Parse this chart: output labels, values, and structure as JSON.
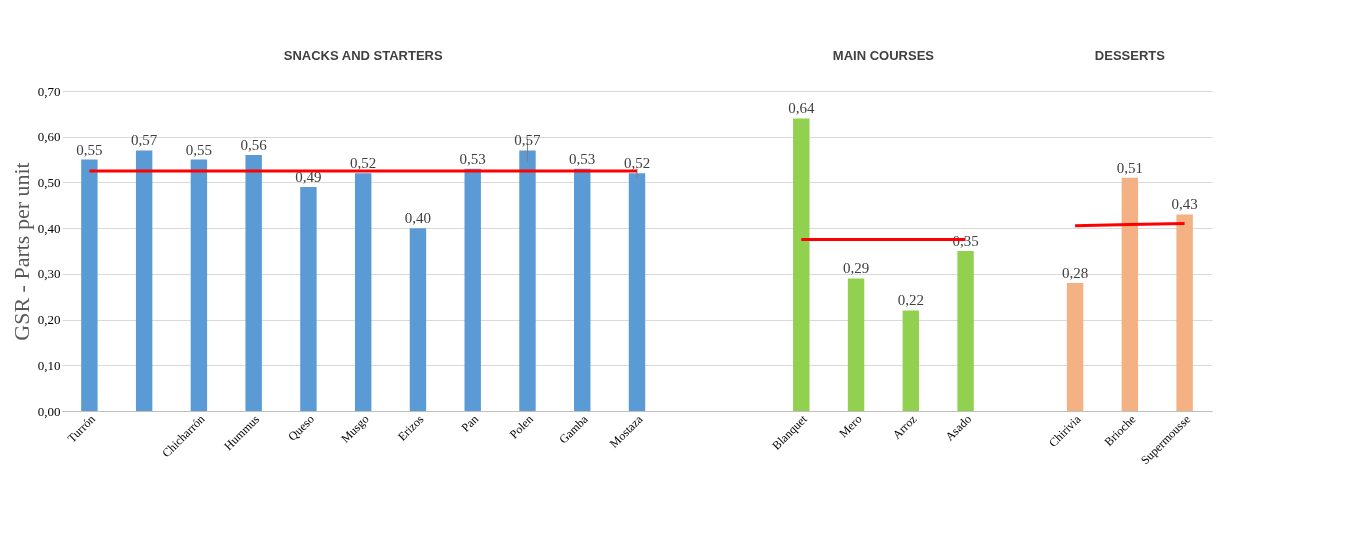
{
  "chart_data": {
    "type": "bar",
    "ylabel": "GSR - Parts per unit",
    "categories": [
      "Turrón",
      null,
      "Chicharrón",
      "Hummus",
      "Queso",
      "Musgo",
      "Erizos",
      "Pan",
      "Polen",
      "Gamba",
      "Mostaza",
      null,
      null,
      "Blanquet",
      "Mero",
      "Arroz",
      "Asado",
      null,
      "Chirivia",
      "Brioche",
      "Supermousse"
    ],
    "series": [
      {
        "values": [
          0.55,
          0.57,
          0.55,
          0.56,
          0.49,
          0.52,
          0.4,
          0.53,
          0.57,
          0.53,
          0.52,
          null,
          null,
          0.64,
          0.29,
          0.22,
          0.35,
          null,
          0.28,
          0.51,
          0.43
        ],
        "colors": [
          "#5b9bd5",
          "#5b9bd5",
          "#5b9bd5",
          "#5b9bd5",
          "#5b9bd5",
          "#5b9bd5",
          "#5b9bd5",
          "#5b9bd5",
          "#5b9bd5",
          "#5b9bd5",
          "#5b9bd5",
          null,
          null,
          "#92d050",
          "#92d050",
          "#92d050",
          "#92d050",
          null,
          "#f4b183",
          "#f4b183",
          "#f4b183"
        ],
        "value_labels": [
          "0,55",
          "0,57",
          "0,55",
          "0,56",
          "0,49",
          "0,52",
          "0,40",
          "0,53",
          "0,57",
          "0,53",
          "0,52",
          null,
          null,
          "0,64",
          "0,29",
          "0,22",
          "0,35",
          null,
          "0,28",
          "0,51",
          "0,43"
        ],
        "errors": [
          null,
          null,
          null,
          null,
          null,
          null,
          null,
          null,
          0.025,
          null,
          0.01,
          null,
          null,
          null,
          null,
          null,
          null,
          null,
          null,
          null,
          null
        ]
      },
      {
        "type": "line",
        "color": "#ff0000",
        "values": [
          0.525,
          0.525,
          0.525,
          0.525,
          0.525,
          0.525,
          0.525,
          0.525,
          0.525,
          0.525,
          0.525,
          null,
          null,
          null,
          null,
          null,
          null,
          null,
          null,
          null,
          null
        ]
      },
      {
        "type": "line",
        "color": "#ff0000",
        "values": [
          null,
          null,
          null,
          null,
          null,
          null,
          null,
          null,
          null,
          null,
          null,
          null,
          null,
          0.375,
          0.375,
          0.375,
          0.375,
          null,
          null,
          null,
          null
        ]
      },
      {
        "type": "line",
        "color": "#ff0000",
        "values": [
          null,
          null,
          null,
          null,
          null,
          null,
          null,
          null,
          null,
          null,
          null,
          null,
          null,
          null,
          null,
          null,
          null,
          null,
          0.405,
          0.408,
          0.41
        ]
      }
    ],
    "ylim": [
      0,
      0.7
    ],
    "yticks": [
      {
        "value": 0,
        "label": "0,00"
      },
      {
        "value": 0.1,
        "label": "0,10"
      },
      {
        "value": 0.2,
        "label": "0,20"
      },
      {
        "value": 0.3,
        "label": "0,30"
      },
      {
        "value": 0.4,
        "label": "0,40"
      },
      {
        "value": 0.5,
        "label": "0,50"
      },
      {
        "value": 0.6,
        "label": "0,60"
      },
      {
        "value": 0.7,
        "label": "0,70"
      }
    ],
    "grid": "y",
    "annotations": [
      "SNACKS AND STARTERS",
      "MAIN COURSES",
      "DESSERTS"
    ]
  }
}
